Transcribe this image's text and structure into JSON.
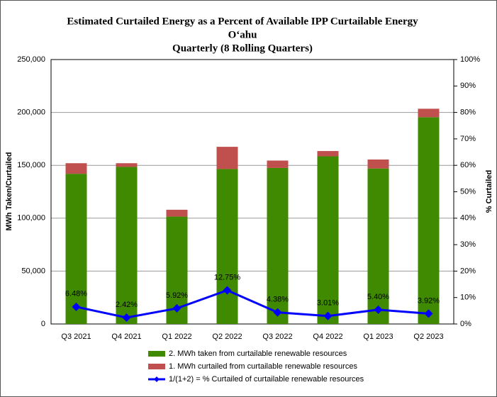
{
  "chart_data": {
    "type": "bar",
    "stacked": true,
    "title": [
      "Estimated Curtailed  Energy as a Percent of Available IPP Curtailable  Energy",
      "O‘ahu",
      "Quarterly (8 Rolling Quarters)"
    ],
    "ylabel": "MWh Taken/Curtailed",
    "y2label": "% Curtailed",
    "categories": [
      "Q3 2021",
      "Q4 2021",
      "Q1 2022",
      "Q2 2022",
      "Q3 2022",
      "Q4 2022",
      "Q1 2023",
      "Q2 2023"
    ],
    "series": [
      {
        "name": "2. MWh taken from curtailable renewable resources",
        "color": "#3f8a00",
        "values": [
          142000,
          148500,
          101500,
          146500,
          147500,
          158500,
          147000,
          195500
        ]
      },
      {
        "name": "1. MWh curtailed from curtailable renewable resources",
        "color": "#c0504d",
        "values": [
          10000,
          3500,
          6500,
          21000,
          7000,
          5000,
          8500,
          8000
        ]
      },
      {
        "name": "1/(1+2) = % Curtailed of curtailable renewable resources",
        "color": "#0000ff",
        "type": "line",
        "axis": "y2",
        "values": [
          6.48,
          2.42,
          5.92,
          12.75,
          4.38,
          3.01,
          5.4,
          3.92
        ],
        "value_labels": [
          "6.48%",
          "2.42%",
          "5.92%",
          "12.75%",
          "4.38%",
          "3.01%",
          "5.40%",
          "3.92%"
        ]
      }
    ],
    "ylim": [
      0,
      250000
    ],
    "yticks": [
      0,
      {
        "value": 50000,
        "label": "50,000"
      },
      {
        "value": 100000,
        "label": "100,000"
      },
      {
        "value": 150000,
        "label": "150,000"
      },
      {
        "value": 200000,
        "label": "200,000"
      },
      {
        "value": 250000,
        "label": "250,000"
      }
    ],
    "y2lim": [
      0,
      100
    ],
    "y2ticks": [
      {
        "value": 0,
        "label": "0%"
      },
      {
        "value": 10,
        "label": "10%"
      },
      {
        "value": 20,
        "label": "20%"
      },
      {
        "value": 30,
        "label": "30%"
      },
      {
        "value": 40,
        "label": "40%"
      },
      {
        "value": 50,
        "label": "50%"
      },
      {
        "value": 60,
        "label": "60%"
      },
      {
        "value": 70,
        "label": "70%"
      },
      {
        "value": 80,
        "label": "80%"
      },
      {
        "value": 90,
        "label": "90%"
      },
      {
        "value": 100,
        "label": "100%"
      }
    ],
    "grid": true,
    "legend": "bottom"
  }
}
